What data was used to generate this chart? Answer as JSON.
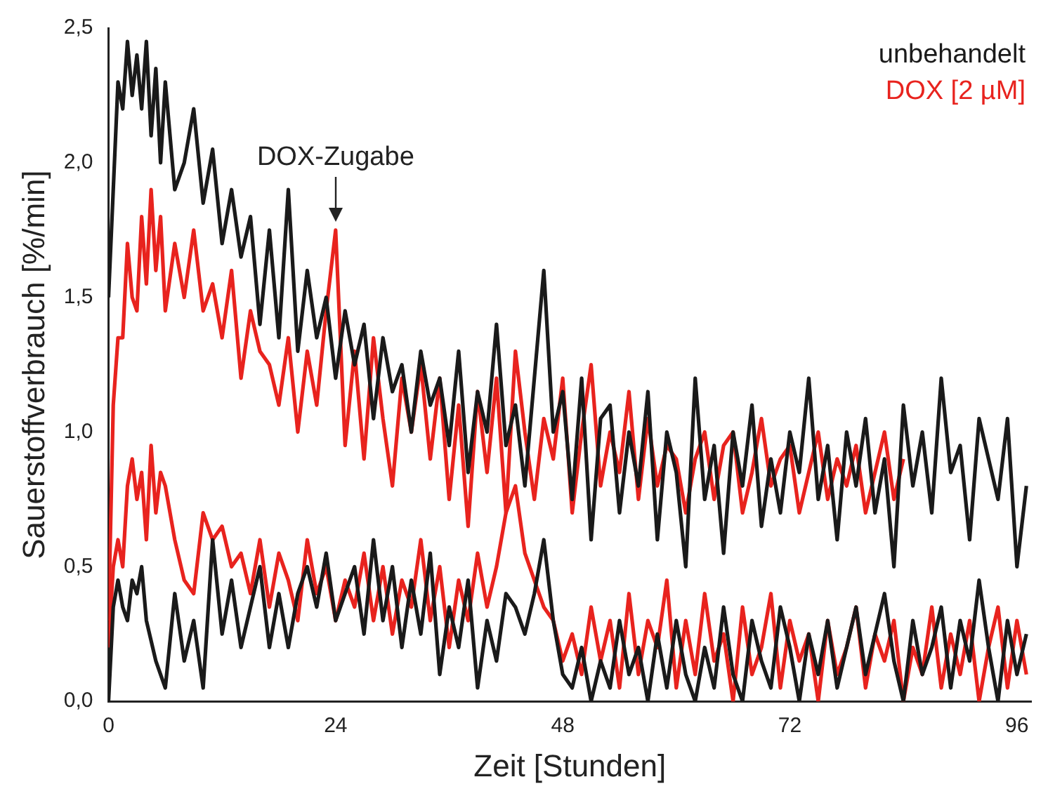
{
  "chart_data": {
    "type": "line",
    "xlabel": "Zeit [Stunden]",
    "ylabel": "Sauerstoffverbrauch [%/min]",
    "xlim": [
      0,
      97.5
    ],
    "xticks": [
      0,
      24,
      48,
      72,
      96
    ],
    "ylim": [
      0,
      2.5
    ],
    "yticks": [
      {
        "value": 0,
        "label": "0,0"
      },
      {
        "value": 0.5,
        "label": "0,5"
      },
      {
        "value": 1,
        "label": "1,0"
      },
      {
        "value": 1.5,
        "label": "1,5"
      },
      {
        "value": 2,
        "label": "2,0"
      },
      {
        "value": 2.5,
        "label": "2,5"
      }
    ],
    "legend": "top right",
    "marker": "none",
    "line_style": "solid",
    "grid": false,
    "annotations": [
      {
        "text": "DOX-Zugabe",
        "x": 24,
        "y": 1.75
      }
    ],
    "series": [
      {
        "name": "unbehandelt",
        "color": "#1a1a1a",
        "x": [
          0,
          0.5,
          1,
          1.5,
          2,
          2.5,
          3,
          3.5,
          4,
          4.5,
          5,
          5.5,
          6,
          7,
          8,
          9,
          10,
          11,
          12,
          13,
          14,
          15,
          16,
          17,
          18,
          19,
          20,
          21,
          22,
          23,
          24,
          25,
          26,
          27,
          28,
          29,
          30,
          31,
          32,
          33,
          34,
          35,
          36,
          37,
          38,
          39,
          40,
          41,
          42,
          43,
          44,
          45,
          46,
          47,
          48,
          49,
          50,
          51,
          52,
          53,
          54,
          55,
          56,
          57,
          58,
          59,
          60,
          61,
          62,
          63,
          64,
          65,
          66,
          67,
          68,
          69,
          70,
          71,
          72,
          73,
          74,
          75,
          76,
          77,
          78,
          79,
          80,
          81,
          82,
          83,
          84,
          85,
          86,
          87,
          88,
          89,
          90,
          91,
          92,
          93,
          94,
          95,
          96,
          97
        ],
        "values": [
          1.5,
          1.9,
          2.3,
          2.2,
          2.45,
          2.25,
          2.4,
          2.2,
          2.45,
          2.1,
          2.35,
          2.0,
          2.3,
          1.9,
          2.0,
          2.2,
          1.85,
          2.05,
          1.7,
          1.9,
          1.65,
          1.8,
          1.4,
          1.75,
          1.35,
          1.9,
          1.3,
          1.6,
          1.35,
          1.5,
          1.2,
          1.45,
          1.25,
          1.4,
          1.05,
          1.35,
          1.15,
          1.25,
          1.0,
          1.3,
          1.1,
          1.2,
          0.95,
          1.3,
          0.85,
          1.15,
          1.0,
          1.4,
          0.95,
          1.1,
          0.8,
          1.2,
          1.6,
          1.0,
          1.15,
          0.75,
          1.2,
          0.6,
          1.05,
          1.1,
          0.7,
          1.0,
          0.8,
          1.15,
          0.6,
          1.0,
          0.85,
          0.5,
          1.2,
          0.75,
          0.95,
          0.55,
          1.0,
          0.8,
          1.1,
          0.65,
          0.9,
          0.7,
          1.0,
          0.85,
          1.2,
          0.75,
          0.95,
          0.6,
          1.0,
          0.8,
          1.05,
          0.7,
          0.9,
          0.5,
          1.1,
          0.8,
          1.0,
          0.7,
          1.2,
          0.85,
          0.95,
          0.6,
          1.05,
          0.9,
          0.75,
          1.05,
          0.5,
          0.8
        ]
      },
      {
        "name": "DOX [2 µM]",
        "color": "#e8231e",
        "x": [
          0,
          0.5,
          1,
          1.5,
          2,
          2.5,
          3,
          3.5,
          4,
          4.5,
          5,
          5.5,
          6,
          7,
          8,
          9,
          10,
          11,
          12,
          13,
          14,
          15,
          16,
          17,
          18,
          19,
          20,
          21,
          22,
          23,
          24,
          25,
          26,
          27,
          28,
          29,
          30,
          31,
          32,
          33,
          34,
          35,
          36,
          37,
          38,
          39,
          40,
          41,
          42,
          43,
          44,
          45,
          46,
          47,
          48,
          49,
          50,
          51,
          52,
          53,
          54,
          55,
          56,
          57,
          58,
          59,
          60,
          61,
          62,
          63,
          64,
          65,
          66,
          67,
          68,
          69,
          70,
          71,
          72,
          73,
          74,
          75,
          76,
          77,
          78,
          79,
          80,
          81,
          82,
          83,
          84
        ],
        "values": [
          0.3,
          1.1,
          1.35,
          1.35,
          1.7,
          1.5,
          1.45,
          1.8,
          1.55,
          1.9,
          1.6,
          1.8,
          1.45,
          1.7,
          1.5,
          1.75,
          1.45,
          1.55,
          1.35,
          1.6,
          1.2,
          1.45,
          1.3,
          1.25,
          1.1,
          1.35,
          1.0,
          1.3,
          1.1,
          1.45,
          1.75,
          0.95,
          1.3,
          0.9,
          1.35,
          1.05,
          0.8,
          1.2,
          1.0,
          1.25,
          0.9,
          1.2,
          0.75,
          1.1,
          0.65,
          1.15,
          0.85,
          1.2,
          0.7,
          1.3,
          1.0,
          0.75,
          1.05,
          0.9,
          1.2,
          0.7,
          1.0,
          1.25,
          0.8,
          1.0,
          0.85,
          1.15,
          0.75,
          1.05,
          0.8,
          0.95,
          0.9,
          0.7,
          0.9,
          1.0,
          0.75,
          0.95,
          1.0,
          0.7,
          0.85,
          1.05,
          0.8,
          0.9,
          0.95,
          0.7,
          0.85,
          1.0,
          0.75,
          0.9,
          0.8,
          0.95,
          0.7,
          0.85,
          1.0,
          0.75,
          0.9
        ]
      },
      {
        "color": "#1a1a1a",
        "x": [
          0,
          0.5,
          1,
          1.5,
          2,
          2.5,
          3,
          3.5,
          4,
          5,
          6,
          7,
          8,
          9,
          10,
          11,
          12,
          13,
          14,
          15,
          16,
          17,
          18,
          19,
          20,
          21,
          22,
          23,
          24,
          25,
          26,
          27,
          28,
          29,
          30,
          31,
          32,
          33,
          34,
          35,
          36,
          37,
          38,
          39,
          40,
          41,
          42,
          43,
          44,
          45,
          46,
          47,
          48,
          49,
          50,
          51,
          52,
          53,
          54,
          55,
          56,
          57,
          58,
          59,
          60,
          61,
          62,
          63,
          64,
          65,
          66,
          67,
          68,
          69,
          70,
          71,
          72,
          73,
          74,
          75,
          76,
          77,
          78,
          79,
          80,
          81,
          82,
          83,
          84,
          85,
          86,
          87,
          88,
          89,
          90,
          91,
          92,
          93,
          94,
          95,
          96,
          97
        ],
        "values": [
          0,
          0.35,
          0.45,
          0.35,
          0.3,
          0.45,
          0.4,
          0.5,
          0.3,
          0.15,
          0.05,
          0.4,
          0.15,
          0.3,
          0.05,
          0.6,
          0.25,
          0.45,
          0.2,
          0.35,
          0.5,
          0.2,
          0.4,
          0.2,
          0.4,
          0.5,
          0.35,
          0.55,
          0.3,
          0.4,
          0.5,
          0.25,
          0.6,
          0.3,
          0.5,
          0.2,
          0.45,
          0.25,
          0.55,
          0.1,
          0.35,
          0.2,
          0.45,
          0.05,
          0.3,
          0.15,
          0.4,
          0.35,
          0.25,
          0.4,
          0.6,
          0.3,
          0.1,
          0.05,
          0.2,
          0,
          0.15,
          0.05,
          0.3,
          0.1,
          0.2,
          0,
          0.25,
          0.05,
          0.3,
          0.1,
          0,
          0.2,
          0.05,
          0.35,
          0.1,
          0,
          0.3,
          0.15,
          0.05,
          0.35,
          0.2,
          0,
          0.25,
          0.1,
          0.3,
          0.05,
          0.2,
          0.35,
          0.1,
          0.25,
          0.4,
          0.15,
          0,
          0.3,
          0.1,
          0.2,
          0.35,
          0.05,
          0.3,
          0.15,
          0.45,
          0.2,
          0,
          0.3,
          0.1,
          0.25
        ]
      },
      {
        "color": "#e8231e",
        "x": [
          0,
          0.5,
          1,
          1.5,
          2,
          2.5,
          3,
          3.5,
          4,
          4.5,
          5,
          5.5,
          6,
          7,
          8,
          9,
          10,
          11,
          12,
          13,
          14,
          15,
          16,
          17,
          18,
          19,
          20,
          21,
          22,
          23,
          24,
          25,
          26,
          27,
          28,
          29,
          30,
          31,
          32,
          33,
          34,
          35,
          36,
          37,
          38,
          39,
          40,
          41,
          42,
          43,
          44,
          45,
          46,
          47,
          48,
          49,
          50,
          51,
          52,
          53,
          54,
          55,
          56,
          57,
          58,
          59,
          60,
          61,
          62,
          63,
          64,
          65,
          66,
          67,
          68,
          69,
          70,
          71,
          72,
          73,
          74,
          75,
          76,
          77,
          78,
          79,
          80,
          81,
          82,
          83,
          84,
          85,
          86,
          87,
          88,
          89,
          90,
          91,
          92,
          93,
          94,
          95,
          96,
          97
        ],
        "values": [
          0.2,
          0.5,
          0.6,
          0.5,
          0.8,
          0.9,
          0.75,
          0.85,
          0.6,
          0.95,
          0.7,
          0.85,
          0.8,
          0.6,
          0.45,
          0.4,
          0.7,
          0.6,
          0.65,
          0.5,
          0.55,
          0.4,
          0.6,
          0.35,
          0.55,
          0.45,
          0.3,
          0.6,
          0.4,
          0.5,
          0.3,
          0.45,
          0.35,
          0.55,
          0.3,
          0.5,
          0.25,
          0.45,
          0.35,
          0.6,
          0.3,
          0.5,
          0.2,
          0.45,
          0.3,
          0.55,
          0.35,
          0.5,
          0.7,
          0.8,
          0.55,
          0.45,
          0.35,
          0.3,
          0.15,
          0.25,
          0.1,
          0.35,
          0.15,
          0.3,
          0.05,
          0.4,
          0.1,
          0.3,
          0.2,
          0.45,
          0.05,
          0.3,
          0.1,
          0.4,
          0.15,
          0.25,
          0,
          0.35,
          0.1,
          0.2,
          0.4,
          0.05,
          0.3,
          0.15,
          0.25,
          0,
          0.3,
          0.1,
          0.2,
          0.35,
          0.05,
          0.25,
          0.15,
          0.3,
          0,
          0.2,
          0.1,
          0.35,
          0.05,
          0.25,
          0.1,
          0.3,
          0,
          0.2,
          0.35,
          0.05,
          0.3,
          0.1
        ]
      }
    ]
  }
}
